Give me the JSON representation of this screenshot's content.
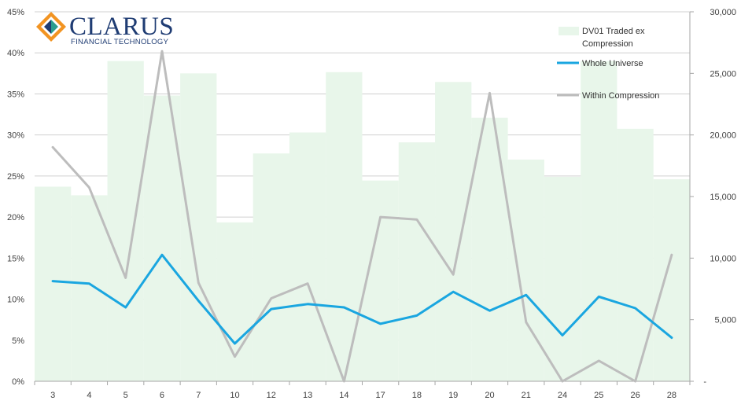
{
  "logo": {
    "name": "CLARUS",
    "tagline": "FINANCIAL TECHNOLOGY"
  },
  "colors": {
    "bars": "#e8f6ea",
    "whole_universe": "#1aa6e0",
    "within_compression": "#bdbdbd",
    "grid": "#d0d0d0",
    "logo_blue": "#1f3c73",
    "logo_orange": "#f29422",
    "logo_teal": "#2a9d8f"
  },
  "chart_data": {
    "type": "bar",
    "categories": [
      "3",
      "4",
      "5",
      "6",
      "7",
      "10",
      "12",
      "13",
      "14",
      "17",
      "18",
      "19",
      "20",
      "21",
      "24",
      "25",
      "26",
      "28"
    ],
    "y_left": {
      "ticks": [
        "0%",
        "5%",
        "10%",
        "15%",
        "20%",
        "25%",
        "30%",
        "35%",
        "40%",
        "45%"
      ],
      "lim": [
        0,
        45
      ]
    },
    "y_right": {
      "ticks": [
        "-",
        "5,000",
        "10,000",
        "15,000",
        "20,000",
        "25,000",
        "30,000"
      ],
      "lim": [
        0,
        30000
      ]
    },
    "grid": true,
    "legend_position": "top-right",
    "series": [
      {
        "name": "DV01 Traded ex Compression",
        "kind": "bar",
        "axis": "right",
        "values": [
          15800,
          15100,
          26000,
          23200,
          25000,
          12900,
          18500,
          20200,
          25100,
          16300,
          19400,
          24300,
          21400,
          18000,
          16600,
          26000,
          20500,
          16400
        ]
      },
      {
        "name": "Whole Universe",
        "kind": "line",
        "axis": "left",
        "values": [
          12.2,
          11.9,
          9.0,
          15.4,
          9.8,
          4.6,
          8.8,
          9.4,
          9.0,
          7.0,
          8.0,
          10.9,
          8.6,
          10.5,
          5.6,
          10.3,
          8.9,
          5.3
        ]
      },
      {
        "name": "Within Compression",
        "kind": "line",
        "axis": "left",
        "values": [
          28.5,
          23.6,
          12.6,
          40.2,
          12.0,
          3.0,
          10.1,
          11.9,
          0.0,
          20.0,
          19.7,
          13.0,
          35.1,
          7.2,
          0.0,
          2.5,
          0.0,
          15.4
        ]
      }
    ],
    "legend": [
      {
        "label_lines": [
          "DV01 Traded ex",
          "Compression"
        ]
      },
      {
        "label_lines": [
          "Whole Universe"
        ]
      },
      {
        "label_lines": [
          "Within Compression"
        ]
      }
    ]
  }
}
